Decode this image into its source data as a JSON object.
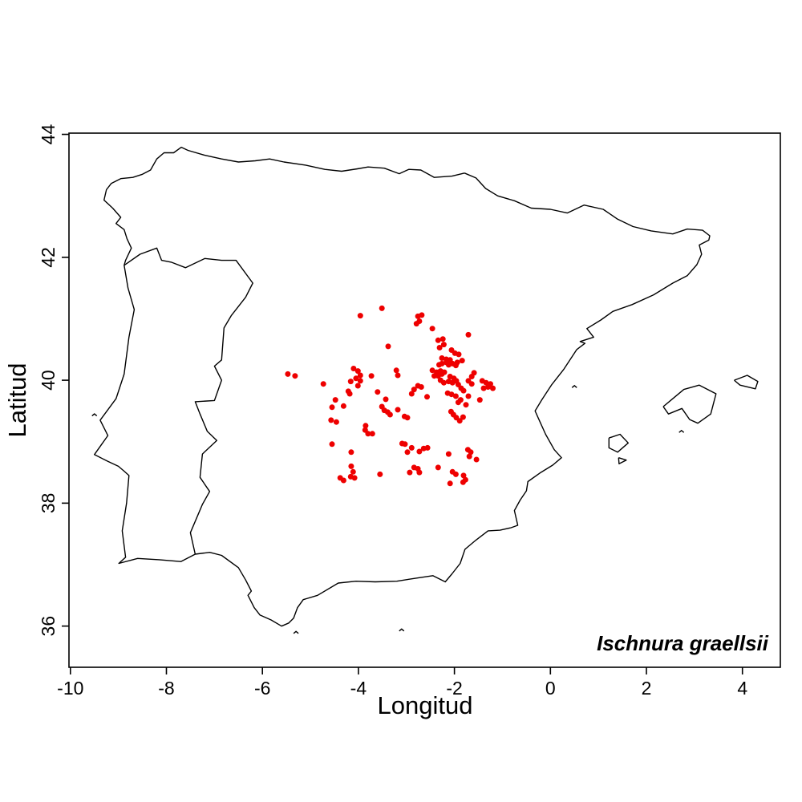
{
  "chart_data": {
    "type": "scatter",
    "title": "",
    "species_label": "Ischnura graellsii",
    "xlabel": "Longitud",
    "ylabel": "Latitud",
    "xlim": [
      -10.03,
      4.79
    ],
    "ylim": [
      35.33,
      44.02
    ],
    "x_ticks": [
      -10,
      -8,
      -6,
      -4,
      -2,
      0,
      2,
      4
    ],
    "y_ticks": [
      36,
      38,
      40,
      42,
      44
    ],
    "grid": false,
    "legend": "none",
    "point_color": "#EE0000",
    "outline_color": "#000000",
    "background_color": "#FFFFFF",
    "points": [
      [
        -3.51,
        41.17
      ],
      [
        -3.96,
        41.05
      ],
      [
        -2.76,
        41.04
      ],
      [
        -2.68,
        41.06
      ],
      [
        -2.73,
        40.96
      ],
      [
        -2.79,
        40.92
      ],
      [
        -2.46,
        40.84
      ],
      [
        -3.38,
        40.55
      ],
      [
        -5.47,
        40.1
      ],
      [
        -5.32,
        40.07
      ],
      [
        -4.73,
        39.94
      ],
      [
        -4.1,
        40.19
      ],
      [
        -4.01,
        40.15
      ],
      [
        -3.96,
        40.08
      ],
      [
        -4.05,
        40.03
      ],
      [
        -3.96,
        39.99
      ],
      [
        -4.01,
        39.91
      ],
      [
        -4.16,
        39.98
      ],
      [
        -4.21,
        39.82
      ],
      [
        -4.18,
        39.78
      ],
      [
        -3.73,
        40.07
      ],
      [
        -3.21,
        40.16
      ],
      [
        -3.18,
        40.08
      ],
      [
        -3.6,
        39.81
      ],
      [
        -2.89,
        39.78
      ],
      [
        -2.84,
        39.85
      ],
      [
        -2.76,
        39.91
      ],
      [
        -2.69,
        39.89
      ],
      [
        -2.57,
        39.73
      ],
      [
        -3.43,
        39.69
      ],
      [
        -3.51,
        39.57
      ],
      [
        -3.46,
        39.51
      ],
      [
        -3.39,
        39.48
      ],
      [
        -3.34,
        39.44
      ],
      [
        -3.18,
        39.52
      ],
      [
        -3.04,
        39.41
      ],
      [
        -2.98,
        39.39
      ],
      [
        -4.48,
        39.68
      ],
      [
        -4.31,
        39.58
      ],
      [
        -4.55,
        39.56
      ],
      [
        -4.57,
        39.35
      ],
      [
        -4.46,
        39.32
      ],
      [
        -3.85,
        39.26
      ],
      [
        -3.86,
        39.19
      ],
      [
        -3.8,
        39.13
      ],
      [
        -3.71,
        39.13
      ],
      [
        -2.07,
        39.49
      ],
      [
        -2.02,
        39.44
      ],
      [
        -1.96,
        39.39
      ],
      [
        -1.89,
        39.34
      ],
      [
        -1.82,
        39.4
      ],
      [
        -4.55,
        38.96
      ],
      [
        -4.15,
        38.83
      ],
      [
        -3.09,
        38.97
      ],
      [
        -3.03,
        38.96
      ],
      [
        -2.98,
        38.83
      ],
      [
        -2.89,
        38.9
      ],
      [
        -2.73,
        38.84
      ],
      [
        -2.64,
        38.89
      ],
      [
        -2.56,
        38.9
      ],
      [
        -2.12,
        38.8
      ],
      [
        -1.72,
        38.87
      ],
      [
        -1.66,
        38.83
      ],
      [
        -1.69,
        38.76
      ],
      [
        -1.54,
        38.71
      ],
      [
        -4.15,
        38.6
      ],
      [
        -4.11,
        38.51
      ],
      [
        -3.55,
        38.47
      ],
      [
        -2.93,
        38.5
      ],
      [
        -2.84,
        38.58
      ],
      [
        -2.76,
        38.56
      ],
      [
        -2.73,
        38.5
      ],
      [
        -2.34,
        38.58
      ],
      [
        -2.04,
        38.51
      ],
      [
        -1.97,
        38.47
      ],
      [
        -1.81,
        38.45
      ],
      [
        -1.77,
        38.38
      ],
      [
        -1.82,
        38.34
      ],
      [
        -4.38,
        38.41
      ],
      [
        -4.31,
        38.37
      ],
      [
        -4.16,
        38.43
      ],
      [
        -4.08,
        38.41
      ],
      [
        -2.09,
        38.32
      ],
      [
        -1.71,
        40.74
      ],
      [
        -2.34,
        40.65
      ],
      [
        -2.24,
        40.67
      ],
      [
        -2.22,
        40.58
      ],
      [
        -2.31,
        40.53
      ],
      [
        -2.06,
        40.49
      ],
      [
        -1.99,
        40.44
      ],
      [
        -1.91,
        40.42
      ],
      [
        -1.84,
        40.32
      ],
      [
        -1.94,
        40.29
      ],
      [
        -2.26,
        40.36
      ],
      [
        -2.17,
        40.34
      ],
      [
        -2.09,
        40.33
      ],
      [
        -2.17,
        40.29
      ],
      [
        -2.26,
        40.27
      ],
      [
        -2.32,
        40.25
      ],
      [
        -2.12,
        40.25
      ],
      [
        -2.04,
        40.27
      ],
      [
        -1.97,
        40.24
      ],
      [
        -2.46,
        40.16
      ],
      [
        -2.37,
        40.13
      ],
      [
        -2.29,
        40.15
      ],
      [
        -2.21,
        40.13
      ],
      [
        -2.26,
        40.1
      ],
      [
        -2.34,
        40.07
      ],
      [
        -2.42,
        40.07
      ],
      [
        -1.59,
        40.12
      ],
      [
        -1.64,
        40.06
      ],
      [
        -2.09,
        40.06
      ],
      [
        -2.01,
        40.03
      ],
      [
        -1.96,
        39.99
      ],
      [
        -2.04,
        39.96
      ],
      [
        -2.12,
        39.98
      ],
      [
        -2.29,
        40.0
      ],
      [
        -2.22,
        39.96
      ],
      [
        -1.42,
        39.99
      ],
      [
        -1.34,
        39.96
      ],
      [
        -1.25,
        39.94
      ],
      [
        -1.3,
        39.89
      ],
      [
        -1.39,
        39.87
      ],
      [
        -1.2,
        39.87
      ],
      [
        -1.92,
        39.93
      ],
      [
        -1.86,
        39.87
      ],
      [
        -1.81,
        39.83
      ],
      [
        -1.71,
        39.99
      ],
      [
        -1.64,
        39.94
      ],
      [
        -1.71,
        39.74
      ],
      [
        -1.47,
        39.68
      ],
      [
        -1.87,
        39.68
      ],
      [
        -1.92,
        39.64
      ],
      [
        -1.76,
        39.6
      ],
      [
        -2.14,
        39.79
      ],
      [
        -2.06,
        39.77
      ],
      [
        -1.97,
        39.74
      ]
    ],
    "map_outlines": {
      "iberia_mainland": [
        [
          -1.79,
          43.37
        ],
        [
          -2.05,
          43.32
        ],
        [
          -2.42,
          43.3
        ],
        [
          -2.7,
          43.42
        ],
        [
          -2.95,
          43.43
        ],
        [
          -3.15,
          43.36
        ],
        [
          -3.46,
          43.45
        ],
        [
          -3.8,
          43.47
        ],
        [
          -4.02,
          43.44
        ],
        [
          -4.35,
          43.4
        ],
        [
          -4.7,
          43.43
        ],
        [
          -5.1,
          43.5
        ],
        [
          -5.55,
          43.55
        ],
        [
          -5.85,
          43.6
        ],
        [
          -6.15,
          43.57
        ],
        [
          -6.5,
          43.55
        ],
        [
          -6.85,
          43.6
        ],
        [
          -7.2,
          43.66
        ],
        [
          -7.55,
          43.74
        ],
        [
          -7.69,
          43.79
        ],
        [
          -7.85,
          43.7
        ],
        [
          -8.05,
          43.7
        ],
        [
          -8.2,
          43.6
        ],
        [
          -8.33,
          43.42
        ],
        [
          -8.5,
          43.35
        ],
        [
          -8.7,
          43.3
        ],
        [
          -8.95,
          43.28
        ],
        [
          -9.15,
          43.2
        ],
        [
          -9.25,
          43.1
        ],
        [
          -9.3,
          42.93
        ],
        [
          -9.12,
          42.8
        ],
        [
          -8.95,
          42.65
        ],
        [
          -9.05,
          42.55
        ],
        [
          -8.88,
          42.45
        ],
        [
          -8.82,
          42.3
        ],
        [
          -8.73,
          42.15
        ],
        [
          -8.85,
          41.95
        ],
        [
          -8.88,
          41.87
        ],
        [
          -8.8,
          41.5
        ],
        [
          -8.67,
          41.15
        ],
        [
          -8.78,
          40.7
        ],
        [
          -8.88,
          40.1
        ],
        [
          -9.05,
          39.7
        ],
        [
          -9.38,
          39.35
        ],
        [
          -9.22,
          39.1
        ],
        [
          -9.5,
          38.79
        ],
        [
          -9.22,
          38.68
        ],
        [
          -9.0,
          38.6
        ],
        [
          -8.88,
          38.52
        ],
        [
          -8.78,
          38.45
        ],
        [
          -8.83,
          38.0
        ],
        [
          -8.92,
          37.55
        ],
        [
          -8.85,
          37.12
        ],
        [
          -8.99,
          37.02
        ],
        [
          -8.6,
          37.1
        ],
        [
          -8.15,
          37.08
        ],
        [
          -7.7,
          37.05
        ],
        [
          -7.4,
          37.17
        ],
        [
          -7.1,
          37.2
        ],
        [
          -6.85,
          37.15
        ],
        [
          -6.5,
          36.95
        ],
        [
          -6.35,
          36.75
        ],
        [
          -6.23,
          36.57
        ],
        [
          -6.3,
          36.5
        ],
        [
          -6.17,
          36.3
        ],
        [
          -6.05,
          36.18
        ],
        [
          -5.82,
          36.1
        ],
        [
          -5.6,
          36.0
        ],
        [
          -5.45,
          36.05
        ],
        [
          -5.35,
          36.13
        ],
        [
          -5.27,
          36.3
        ],
        [
          -5.15,
          36.43
        ],
        [
          -4.85,
          36.5
        ],
        [
          -4.42,
          36.7
        ],
        [
          -4.05,
          36.73
        ],
        [
          -3.65,
          36.72
        ],
        [
          -3.2,
          36.73
        ],
        [
          -2.8,
          36.78
        ],
        [
          -2.45,
          36.82
        ],
        [
          -2.19,
          36.72
        ],
        [
          -2.05,
          36.85
        ],
        [
          -1.88,
          37.02
        ],
        [
          -1.78,
          37.25
        ],
        [
          -1.55,
          37.4
        ],
        [
          -1.3,
          37.55
        ],
        [
          -1.05,
          37.56
        ],
        [
          -0.82,
          37.6
        ],
        [
          -0.68,
          37.64
        ],
        [
          -0.75,
          37.88
        ],
        [
          -0.63,
          38.05
        ],
        [
          -0.5,
          38.2
        ],
        [
          -0.47,
          38.35
        ],
        [
          -0.2,
          38.5
        ],
        [
          0.05,
          38.62
        ],
        [
          0.23,
          38.74
        ],
        [
          0.08,
          38.87
        ],
        [
          -0.1,
          39.12
        ],
        [
          -0.25,
          39.38
        ],
        [
          -0.32,
          39.5
        ],
        [
          -0.18,
          39.68
        ],
        [
          0.02,
          39.92
        ],
        [
          0.28,
          40.18
        ],
        [
          0.55,
          40.5
        ],
        [
          0.72,
          40.6
        ],
        [
          0.62,
          40.63
        ],
        [
          0.9,
          40.7
        ],
        [
          0.76,
          40.84
        ],
        [
          1.05,
          40.98
        ],
        [
          1.3,
          41.12
        ],
        [
          1.7,
          41.23
        ],
        [
          2.15,
          41.39
        ],
        [
          2.55,
          41.58
        ],
        [
          2.85,
          41.7
        ],
        [
          3.05,
          41.88
        ],
        [
          3.15,
          42.05
        ],
        [
          3.1,
          42.2
        ],
        [
          3.3,
          42.28
        ],
        [
          3.32,
          42.35
        ],
        [
          3.17,
          42.44
        ],
        [
          2.85,
          42.46
        ],
        [
          2.55,
          42.38
        ],
        [
          2.1,
          42.43
        ],
        [
          1.72,
          42.5
        ],
        [
          1.4,
          42.62
        ],
        [
          1.1,
          42.78
        ],
        [
          0.7,
          42.85
        ],
        [
          0.35,
          42.72
        ],
        [
          0.0,
          42.78
        ],
        [
          -0.4,
          42.8
        ],
        [
          -0.75,
          42.92
        ],
        [
          -1.1,
          43.0
        ],
        [
          -1.35,
          43.12
        ],
        [
          -1.55,
          43.29
        ],
        [
          -1.79,
          43.37
        ]
      ],
      "pt_es_border": [
        [
          -8.88,
          41.87
        ],
        [
          -8.55,
          42.05
        ],
        [
          -8.2,
          42.15
        ],
        [
          -8.1,
          41.95
        ],
        [
          -7.9,
          41.92
        ],
        [
          -7.6,
          41.83
        ],
        [
          -7.2,
          41.98
        ],
        [
          -6.85,
          41.95
        ],
        [
          -6.55,
          41.95
        ],
        [
          -6.2,
          41.58
        ],
        [
          -6.35,
          41.35
        ],
        [
          -6.65,
          41.05
        ],
        [
          -6.8,
          40.85
        ],
        [
          -6.85,
          40.33
        ],
        [
          -7.0,
          40.23
        ],
        [
          -6.85,
          40.0
        ],
        [
          -7.0,
          39.67
        ],
        [
          -7.4,
          39.65
        ],
        [
          -7.3,
          39.45
        ],
        [
          -7.15,
          39.17
        ],
        [
          -6.95,
          39.02
        ],
        [
          -7.25,
          38.8
        ],
        [
          -7.3,
          38.42
        ],
        [
          -7.1,
          38.19
        ],
        [
          -7.25,
          37.98
        ],
        [
          -7.5,
          37.52
        ],
        [
          -7.4,
          37.17
        ]
      ],
      "mallorca": [
        [
          2.35,
          39.57
        ],
        [
          2.55,
          39.7
        ],
        [
          2.78,
          39.85
        ],
        [
          3.1,
          39.92
        ],
        [
          3.45,
          39.78
        ],
        [
          3.34,
          39.45
        ],
        [
          3.07,
          39.3
        ],
        [
          2.9,
          39.36
        ],
        [
          2.74,
          39.54
        ],
        [
          2.46,
          39.45
        ],
        [
          2.35,
          39.57
        ]
      ],
      "menorca": [
        [
          3.83,
          40.0
        ],
        [
          4.1,
          40.08
        ],
        [
          4.32,
          39.98
        ],
        [
          4.27,
          39.86
        ],
        [
          3.95,
          39.92
        ],
        [
          3.83,
          40.0
        ]
      ],
      "ibiza": [
        [
          1.22,
          39.06
        ],
        [
          1.45,
          39.12
        ],
        [
          1.62,
          38.98
        ],
        [
          1.4,
          38.83
        ],
        [
          1.22,
          38.9
        ],
        [
          1.22,
          39.06
        ]
      ],
      "formentera": [
        [
          1.42,
          38.74
        ],
        [
          1.58,
          38.7
        ],
        [
          1.43,
          38.64
        ],
        [
          1.42,
          38.74
        ]
      ],
      "islets": [
        [
          -9.5,
          39.42
        ],
        [
          0.5,
          39.88
        ],
        [
          2.73,
          39.15
        ],
        [
          -3.1,
          35.92
        ],
        [
          -5.3,
          35.88
        ]
      ]
    }
  }
}
